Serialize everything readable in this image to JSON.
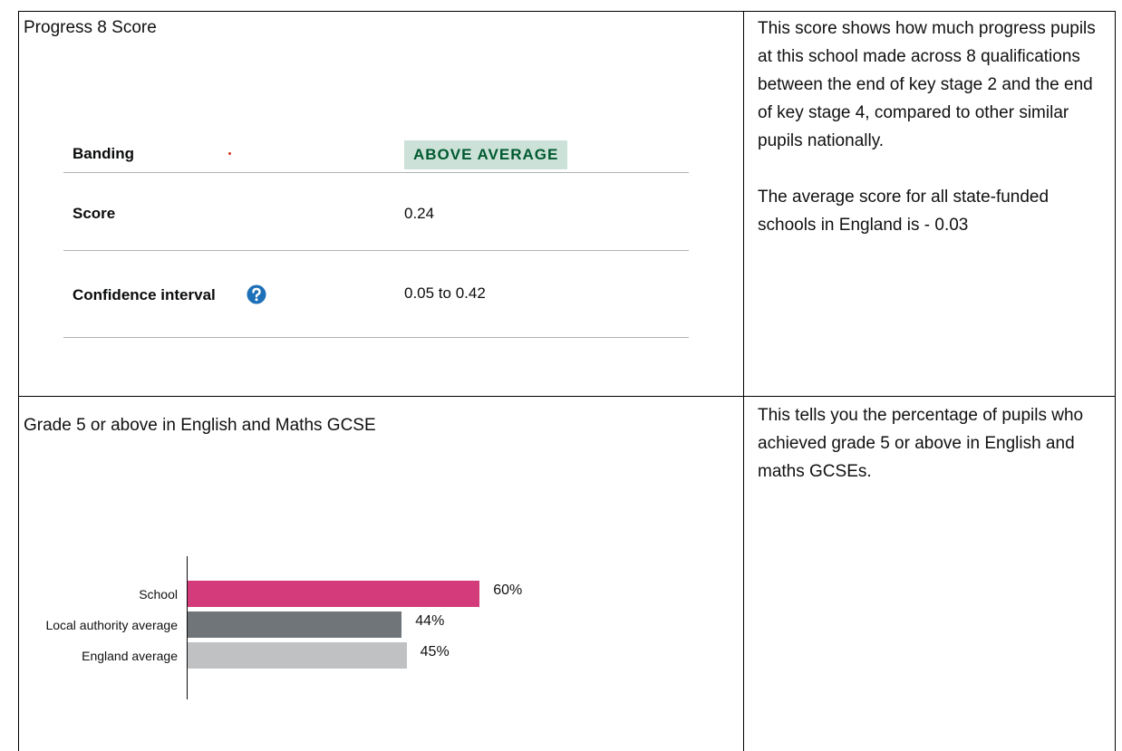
{
  "table": {
    "rows": [
      {
        "title": "Progress 8 Score",
        "details": [
          {
            "label": "Banding",
            "value": "ABOVE AVERAGE"
          },
          {
            "label": "Score",
            "value": "0.24"
          },
          {
            "label": "Confidence interval",
            "value": "0.05 to 0.42"
          }
        ],
        "description": [
          "This score shows how much progress pupils at this school made across 8 qualifications between the end of key stage 2 and the end of key stage 4, compared to other similar pupils nationally.",
          "The average score for all state-funded schools in England is - 0.03"
        ]
      },
      {
        "title": "Grade 5 or above in English and Maths GCSE",
        "description": [
          "This tells you the percentage of pupils who achieved grade 5 or above in English and maths GCSEs."
        ]
      }
    ]
  },
  "chart_data": {
    "type": "bar",
    "orientation": "horizontal",
    "categories": [
      "School",
      "Local authority average",
      "England average"
    ],
    "values": [
      60,
      44,
      45
    ],
    "value_labels": [
      "60%",
      "44%",
      "45%"
    ],
    "colors": [
      "#d33b7b",
      "#6f7579",
      "#bfc1c3"
    ]
  }
}
